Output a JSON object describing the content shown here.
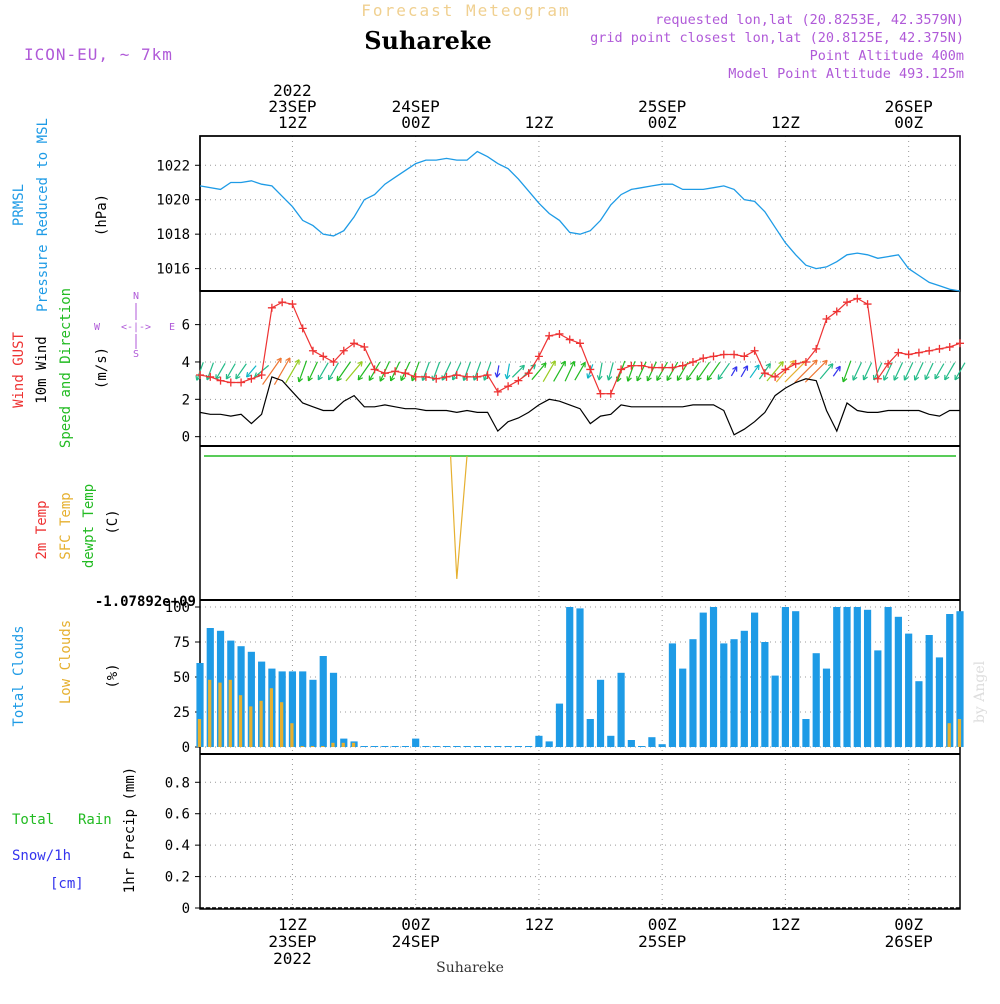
{
  "header": {
    "forecast_label": "Forecast Meteogram",
    "station_name": "Suhareke",
    "model": "ICON-EU, ~ 7km",
    "requested_lonlat": "requested lon,lat (20.8253E, 42.3579N)",
    "grid_lonlat": "grid point closest lon,lat (20.8125E, 42.375N)",
    "point_altitude": "Point Altitude 400m",
    "model_altitude": "Model Point Altitude 493.125m",
    "footer_station": "Suhareke",
    "watermark": "by Angel"
  },
  "colors": {
    "cyan": "#1e9be6",
    "red": "#ee3333",
    "green": "#22bb22",
    "orange": "#e6b030",
    "purple": "#b05ad8",
    "blue": "#3333ee",
    "black": "#000000"
  },
  "time_axis": {
    "top_labels": [
      {
        "t": 12,
        "lines": [
          "2022",
          "23SEP",
          "12Z"
        ]
      },
      {
        "t": 24,
        "lines": [
          "24SEP",
          "00Z"
        ]
      },
      {
        "t": 36,
        "lines": [
          "12Z"
        ]
      },
      {
        "t": 48,
        "lines": [
          "25SEP",
          "00Z"
        ]
      },
      {
        "t": 60,
        "lines": [
          "12Z"
        ]
      },
      {
        "t": 72,
        "lines": [
          "26SEP",
          "00Z"
        ]
      }
    ],
    "bottom_labels": [
      {
        "t": 12,
        "lines": [
          "12Z",
          "23SEP",
          "2022"
        ]
      },
      {
        "t": 24,
        "lines": [
          "00Z",
          "24SEP"
        ]
      },
      {
        "t": 36,
        "lines": [
          "12Z"
        ]
      },
      {
        "t": 48,
        "lines": [
          "00Z",
          "25SEP"
        ]
      },
      {
        "t": 60,
        "lines": [
          "12Z"
        ]
      },
      {
        "t": 72,
        "lines": [
          "00Z",
          "26SEP"
        ]
      }
    ]
  },
  "panels": {
    "pressure": {
      "label": "PRMSL",
      "label2": "Pressure Reduced to MSL",
      "unit": "(hPa)",
      "ticks": [
        "1016",
        "1018",
        "1020",
        "1022"
      ]
    },
    "wind": {
      "label_gust": "Wind GUST",
      "label_wind": "10m Wind",
      "label_dir": "Speed and Direction",
      "unit": "(m/s)",
      "ticks": [
        "0",
        "2",
        "4",
        "6"
      ],
      "compass": {
        "n": "N",
        "s": "S",
        "w": "W",
        "e": "E",
        "cross": "<-|->"
      }
    },
    "temp": {
      "label_2m": "2m Temp",
      "label_sfc": "SFC Temp",
      "label_dew": "dewpt Temp",
      "unit": "(C)",
      "tick": "-1.07892e+09"
    },
    "clouds": {
      "label_total": "Total Clouds",
      "label_low": "Low Clouds",
      "unit": "(%)",
      "ticks": [
        "0",
        "25",
        "50",
        "75",
        "100"
      ]
    },
    "precip": {
      "label_total": "Total",
      "label_rain": "Rain",
      "label_snow": "Snow/1h",
      "label_cm": "[cm]",
      "axis_label": "1hr Precip (mm)",
      "ticks": [
        "0",
        "0.2",
        "0.4",
        "0.6",
        "0.8"
      ]
    }
  },
  "chart_data": {
    "type": "line",
    "x_unit": "hours since 2022-09-23 00Z",
    "xlim": [
      3,
      77
    ],
    "pressure_hpa": {
      "ylim": [
        1014.7,
        1023.7
      ],
      "x": [
        3,
        5,
        6,
        7,
        8,
        9,
        10,
        11,
        12,
        13,
        14,
        15,
        16,
        17,
        18,
        19,
        20,
        21,
        22,
        23,
        24,
        25,
        26,
        27,
        28,
        29,
        30,
        31,
        32,
        33,
        34,
        35,
        36,
        37,
        38,
        39,
        40,
        41,
        42,
        43,
        44,
        45,
        46,
        47,
        48,
        49,
        50,
        51,
        52,
        53,
        54,
        55,
        56,
        57,
        58,
        59,
        60,
        61,
        62,
        63,
        64,
        65,
        66,
        67,
        68,
        69,
        70,
        71,
        72,
        73,
        74,
        75,
        76,
        77
      ],
      "y": [
        1020.8,
        1020.6,
        1021.0,
        1021.0,
        1021.1,
        1020.9,
        1020.8,
        1020.2,
        1019.6,
        1018.8,
        1018.5,
        1018.0,
        1017.9,
        1018.2,
        1019.0,
        1020.0,
        1020.3,
        1020.9,
        1021.3,
        1021.7,
        1022.1,
        1022.3,
        1022.3,
        1022.4,
        1022.3,
        1022.3,
        1022.8,
        1022.5,
        1022.1,
        1021.8,
        1021.2,
        1020.5,
        1019.8,
        1019.2,
        1018.8,
        1018.1,
        1018.0,
        1018.2,
        1018.8,
        1019.7,
        1020.3,
        1020.6,
        1020.7,
        1020.8,
        1020.9,
        1020.9,
        1020.6,
        1020.6,
        1020.6,
        1020.7,
        1020.8,
        1020.6,
        1020.0,
        1019.9,
        1019.3,
        1018.4,
        1017.5,
        1016.8,
        1016.2,
        1016.0,
        1016.1,
        1016.4,
        1016.8,
        1016.9,
        1016.8,
        1016.6,
        1016.7,
        1016.8,
        1016.0,
        1015.6,
        1015.2,
        1015.0,
        1014.8,
        1014.7
      ]
    },
    "wind_gust_ms": {
      "ylim": [
        -0.5,
        7.8
      ],
      "x": [
        3,
        4,
        5,
        6,
        7,
        8,
        9,
        10,
        11,
        12,
        13,
        14,
        15,
        16,
        17,
        18,
        19,
        20,
        21,
        22,
        23,
        24,
        25,
        26,
        27,
        28,
        29,
        30,
        31,
        32,
        33,
        34,
        35,
        36,
        37,
        38,
        39,
        40,
        41,
        42,
        43,
        44,
        45,
        46,
        47,
        48,
        49,
        50,
        51,
        52,
        53,
        54,
        55,
        56,
        57,
        58,
        59,
        60,
        61,
        62,
        63,
        64,
        65,
        66,
        67,
        68,
        69,
        70,
        71,
        72,
        73,
        74,
        75,
        76,
        77
      ],
      "y": [
        3.3,
        3.2,
        3.0,
        2.9,
        2.9,
        3.1,
        3.3,
        6.9,
        7.2,
        7.1,
        5.8,
        4.6,
        4.3,
        4.0,
        4.6,
        5.0,
        4.8,
        3.6,
        3.4,
        3.5,
        3.4,
        3.2,
        3.2,
        3.1,
        3.2,
        3.3,
        3.2,
        3.2,
        3.3,
        2.4,
        2.7,
        3.0,
        3.4,
        4.3,
        5.4,
        5.5,
        5.2,
        5.0,
        3.6,
        2.3,
        2.3,
        3.6,
        3.8,
        3.8,
        3.7,
        3.7,
        3.7,
        3.8,
        4.0,
        4.2,
        4.3,
        4.4,
        4.4,
        4.3,
        4.6,
        3.4,
        3.2,
        3.6,
        3.9,
        4.0,
        4.7,
        6.3,
        6.7,
        7.2,
        7.4,
        7.1,
        3.1,
        3.9,
        4.5,
        4.4,
        4.5,
        4.6,
        4.7,
        4.8,
        5.0
      ]
    },
    "wind_speed_ms": {
      "x": [
        3,
        4,
        5,
        6,
        7,
        8,
        9,
        10,
        11,
        12,
        13,
        14,
        15,
        16,
        17,
        18,
        19,
        20,
        21,
        22,
        23,
        24,
        25,
        26,
        27,
        28,
        29,
        30,
        31,
        32,
        33,
        34,
        35,
        36,
        37,
        38,
        39,
        40,
        41,
        42,
        43,
        44,
        45,
        46,
        47,
        48,
        49,
        50,
        51,
        52,
        53,
        54,
        55,
        56,
        57,
        58,
        59,
        60,
        61,
        62,
        63,
        64,
        65,
        66,
        67,
        68,
        69,
        70,
        71,
        72,
        73,
        74,
        75,
        76,
        77
      ],
      "y": [
        1.3,
        1.2,
        1.2,
        1.1,
        1.2,
        0.7,
        1.2,
        3.2,
        3.0,
        2.4,
        1.8,
        1.6,
        1.4,
        1.4,
        1.9,
        2.2,
        1.6,
        1.6,
        1.7,
        1.6,
        1.5,
        1.5,
        1.4,
        1.4,
        1.4,
        1.3,
        1.4,
        1.3,
        1.3,
        0.3,
        0.8,
        1.0,
        1.3,
        1.7,
        2.0,
        1.9,
        1.7,
        1.5,
        0.7,
        1.1,
        1.2,
        1.7,
        1.6,
        1.6,
        1.6,
        1.6,
        1.6,
        1.6,
        1.7,
        1.7,
        1.7,
        1.4,
        0.1,
        0.4,
        0.8,
        1.3,
        2.2,
        2.6,
        2.9,
        3.1,
        3.0,
        1.4,
        0.3,
        1.8,
        1.4,
        1.3,
        1.3,
        1.4,
        1.4,
        1.4,
        1.4,
        1.2,
        1.1,
        1.4,
        1.4
      ]
    },
    "wind_direction": {
      "arrow_y_ms": 3.5,
      "x": [
        3,
        4,
        5,
        6,
        7,
        8,
        9,
        10,
        11,
        12,
        13,
        14,
        15,
        16,
        17,
        18,
        19,
        20,
        21,
        22,
        23,
        24,
        25,
        26,
        27,
        28,
        29,
        30,
        31,
        32,
        33,
        34,
        35,
        36,
        37,
        38,
        39,
        40,
        41,
        42,
        43,
        44,
        45,
        46,
        47,
        48,
        49,
        50,
        51,
        52,
        53,
        54,
        55,
        56,
        57,
        58,
        59,
        60,
        61,
        62,
        63,
        64,
        65,
        66,
        67,
        68,
        69,
        70,
        71,
        72,
        73,
        74,
        75,
        76,
        77
      ],
      "angle_deg": [
        200,
        200,
        210,
        210,
        215,
        220,
        230,
        35,
        30,
        30,
        200,
        205,
        210,
        210,
        215,
        40,
        215,
        210,
        205,
        205,
        205,
        200,
        200,
        200,
        205,
        205,
        200,
        200,
        200,
        190,
        190,
        45,
        45,
        40,
        30,
        30,
        25,
        30,
        200,
        190,
        195,
        200,
        200,
        205,
        205,
        210,
        210,
        210,
        215,
        215,
        215,
        215,
        30,
        30,
        35,
        35,
        40,
        40,
        45,
        45,
        45,
        40,
        35,
        200,
        205,
        205,
        205,
        205,
        205,
        205,
        205,
        205,
        210,
        210,
        210
      ],
      "speed_ms": [
        1.3,
        1.2,
        1.2,
        1.1,
        1.2,
        0.7,
        1.2,
        3.2,
        3.0,
        2.4,
        1.8,
        1.6,
        1.4,
        1.4,
        1.9,
        2.2,
        1.6,
        1.6,
        1.7,
        1.6,
        1.5,
        1.5,
        1.4,
        1.4,
        1.4,
        1.3,
        1.4,
        1.3,
        1.3,
        0.3,
        0.8,
        1.0,
        1.3,
        1.7,
        2.0,
        1.9,
        1.7,
        1.5,
        0.7,
        1.1,
        1.2,
        1.7,
        1.6,
        1.6,
        1.6,
        1.6,
        1.6,
        1.6,
        1.7,
        1.7,
        1.7,
        1.4,
        0.1,
        0.4,
        0.8,
        1.3,
        2.2,
        2.6,
        2.9,
        3.1,
        3.0,
        1.4,
        0.3,
        1.8,
        1.4,
        1.3,
        1.3,
        1.4,
        1.4,
        1.4,
        1.4,
        1.2,
        1.1,
        1.4,
        1.4
      ]
    },
    "sfc_temp": {
      "description_values": "flat line with single spike",
      "x": [
        27.4,
        28.0,
        29.0
      ],
      "y_fraction_of_panel": [
        0.0,
        0.91,
        0.0
      ]
    },
    "dewpoint_flat": true,
    "total_clouds_pct": {
      "ylim": [
        -5,
        105
      ],
      "x": [
        3,
        4,
        5,
        6,
        7,
        8,
        9,
        10,
        11,
        12,
        13,
        14,
        15,
        16,
        17,
        18,
        19,
        20,
        21,
        22,
        23,
        24,
        25,
        26,
        27,
        28,
        29,
        30,
        31,
        32,
        33,
        34,
        35,
        36,
        37,
        38,
        39,
        40,
        41,
        42,
        43,
        44,
        45,
        46,
        47,
        48,
        49,
        50,
        51,
        52,
        53,
        54,
        55,
        56,
        57,
        58,
        59,
        60,
        61,
        62,
        63,
        64,
        65,
        66,
        67,
        68,
        69,
        70,
        71,
        72,
        73,
        74,
        75,
        76,
        77
      ],
      "y": [
        60,
        85,
        83,
        76,
        72,
        68,
        61,
        56,
        54,
        54,
        54,
        48,
        65,
        53,
        6,
        4,
        0,
        0,
        0,
        0,
        0,
        6,
        0,
        0,
        0,
        0,
        0,
        0,
        0,
        0,
        0,
        0,
        0,
        8,
        4,
        31,
        100,
        99,
        20,
        48,
        8,
        53,
        5,
        0,
        7,
        2,
        74,
        56,
        77,
        96,
        100,
        74,
        77,
        83,
        96,
        75,
        51,
        100,
        97,
        20,
        67,
        56,
        100,
        100,
        100,
        98,
        69,
        100,
        93,
        81,
        47,
        80,
        64,
        95,
        97
      ]
    },
    "low_clouds_pct": {
      "x": [
        3,
        4,
        5,
        6,
        7,
        8,
        9,
        10,
        11,
        12,
        13,
        14,
        15,
        16,
        17,
        18,
        76,
        77
      ],
      "y": [
        20,
        48,
        46,
        48,
        37,
        29,
        33,
        42,
        32,
        17,
        0,
        0,
        0,
        3,
        3,
        3,
        17,
        20
      ]
    },
    "precip_mm": {
      "ylim": [
        0,
        0.98
      ],
      "values": "all zero"
    }
  }
}
